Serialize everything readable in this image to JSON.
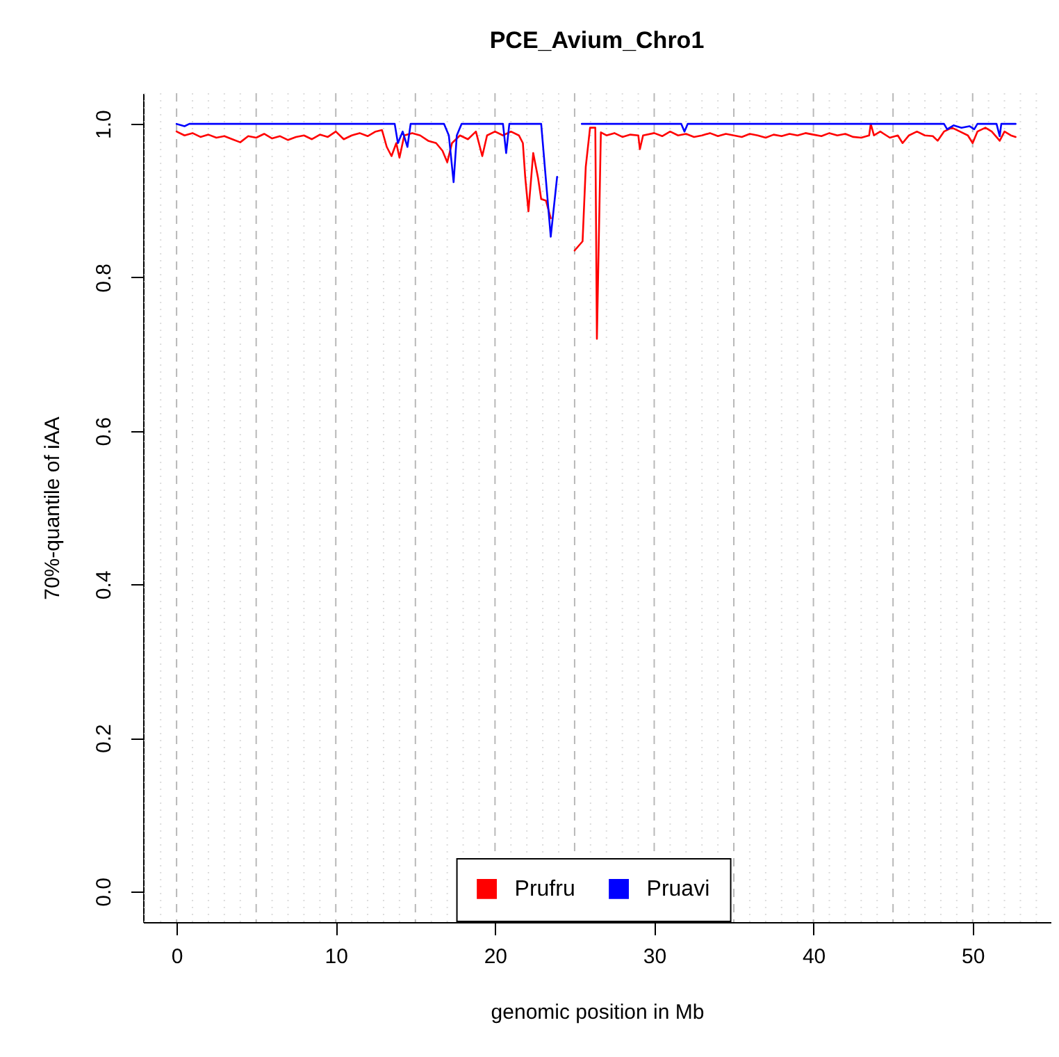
{
  "chart_data": {
    "type": "line",
    "title": "PCE_Avium_Chro1",
    "xlabel": "genomic position in Mb",
    "ylabel": "70%-quantile of iAA",
    "xlim": [
      -2.1,
      54.9
    ],
    "xticks": [
      0,
      10,
      20,
      30,
      40,
      50
    ],
    "ylim": [
      -0.04,
      1.04
    ],
    "yticks": [
      {
        "value": 0,
        "label": "0.0"
      },
      {
        "value": 0.2,
        "label": "0.2"
      },
      {
        "value": 0.4,
        "label": "0.4"
      },
      {
        "value": 0.6,
        "label": "0.6"
      },
      {
        "value": 0.8,
        "label": "0.8"
      },
      {
        "value": 1,
        "label": "1.0"
      }
    ],
    "grid": "x",
    "legend": "bottom",
    "marker": "none",
    "line_style": "solid",
    "series": [
      {
        "name": "Prufru",
        "color": "#ff0000",
        "x": [
          0,
          0.5,
          1,
          1.5,
          2,
          2.5,
          3,
          3.5,
          4,
          4.5,
          5,
          5.5,
          6,
          6.5,
          7,
          7.5,
          8,
          8.5,
          9,
          9.5,
          10,
          10.5,
          11,
          11.5,
          12,
          12.5,
          12.9,
          13.2,
          13.5,
          13.8,
          14.0,
          14.3,
          14.8,
          15.3,
          15.8,
          16.3,
          16.7,
          17.0,
          17.3,
          17.8,
          18.3,
          18.8,
          19.2,
          19.5,
          20,
          20.5,
          21,
          21.5,
          21.75,
          21.9,
          22.1,
          22.4,
          22.7,
          22.9,
          23.2,
          23.5,
          24.2,
          25.0,
          25.5,
          25.7,
          25.97,
          26.3,
          26.4,
          26.65,
          27,
          27.5,
          28,
          28.5,
          29.0,
          29.1,
          29.3,
          30,
          30.5,
          31,
          31.5,
          32,
          32.5,
          33,
          33.5,
          34,
          34.5,
          35,
          35.5,
          36,
          36.5,
          37,
          37.5,
          38,
          38.5,
          39,
          39.5,
          40,
          40.5,
          41,
          41.5,
          42,
          42.5,
          43,
          43.5,
          43.6,
          43.8,
          44.2,
          44.8,
          45.3,
          45.6,
          46,
          46.5,
          47,
          47.5,
          47.8,
          48.2,
          48.7,
          49.2,
          49.7,
          50,
          50.3,
          50.8,
          51.2,
          51.7,
          52,
          52.4,
          52.7
        ],
        "values": [
          0.99,
          0.985,
          0.988,
          0.983,
          0.986,
          0.982,
          0.984,
          0.98,
          0.976,
          0.984,
          0.982,
          0.987,
          0.981,
          0.984,
          0.979,
          0.983,
          0.985,
          0.98,
          0.986,
          0.983,
          0.99,
          0.98,
          0.985,
          0.988,
          0.984,
          0.99,
          0.992,
          0.97,
          0.958,
          0.975,
          0.956,
          0.985,
          0.988,
          0.985,
          0.978,
          0.975,
          0.965,
          0.95,
          0.975,
          0.985,
          0.98,
          0.99,
          0.958,
          0.985,
          0.99,
          0.985,
          0.99,
          0.985,
          0.975,
          0.93,
          0.886,
          0.962,
          0.93,
          0.902,
          0.9,
          0.877,
          null,
          0.835,
          0.847,
          0.944,
          0.995,
          0.995,
          0.72,
          0.989,
          0.985,
          0.988,
          0.983,
          0.986,
          0.985,
          0.967,
          0.985,
          0.988,
          0.984,
          0.99,
          0.985,
          0.987,
          0.983,
          0.985,
          0.988,
          0.984,
          0.987,
          0.985,
          0.983,
          0.987,
          0.985,
          0.982,
          0.986,
          0.984,
          0.987,
          0.985,
          0.988,
          0.986,
          0.984,
          0.988,
          0.985,
          0.987,
          0.983,
          0.982,
          0.985,
          1.0,
          0.985,
          0.99,
          0.982,
          0.985,
          0.975,
          0.985,
          0.99,
          0.985,
          0.984,
          0.978,
          0.99,
          0.995,
          0.99,
          0.985,
          0.975,
          0.99,
          0.995,
          0.99,
          0.978,
          0.99,
          0.985,
          0.983
        ]
      },
      {
        "name": "Pruavi",
        "color": "#0000ff",
        "x": [
          0,
          0.5,
          0.8,
          13.7,
          13.9,
          14.2,
          14.5,
          14.7,
          16.8,
          17.1,
          17.4,
          17.6,
          17.9,
          20.5,
          20.7,
          20.9,
          22.9,
          23.5,
          23.9,
          24.6,
          25.45,
          31.7,
          31.9,
          32.1,
          48.2,
          48.4,
          48.8,
          49.3,
          49.8,
          50.1,
          50.3,
          51.5,
          51.7,
          51.8,
          52.7
        ],
        "values": [
          1.0,
          0.997,
          1.0,
          1.0,
          0.975,
          0.99,
          0.97,
          1.0,
          1.0,
          0.985,
          0.924,
          0.985,
          1.0,
          1.0,
          0.962,
          1.0,
          1.0,
          0.853,
          0.931,
          null,
          1.0,
          1.0,
          0.99,
          1.0,
          1.0,
          0.993,
          0.998,
          0.995,
          0.997,
          0.993,
          1.0,
          1.0,
          0.984,
          1.0,
          1.0
        ]
      }
    ]
  }
}
